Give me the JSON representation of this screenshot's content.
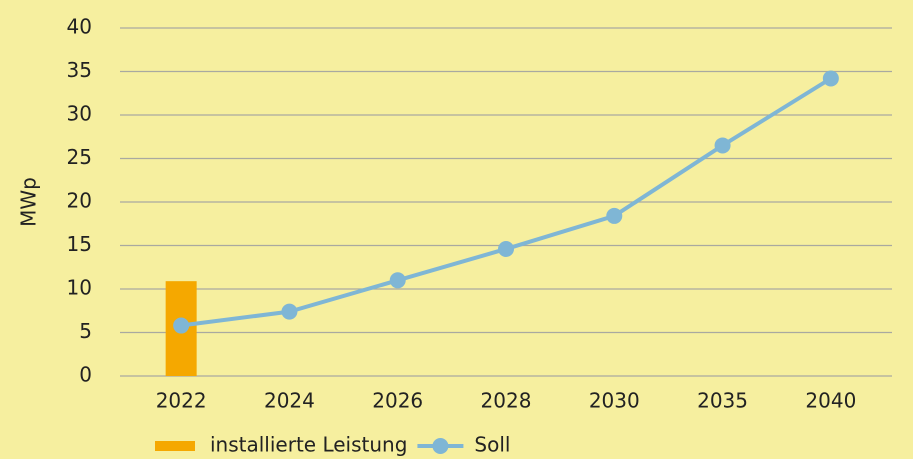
{
  "chart_data": {
    "type": "combo",
    "y_label": "MWp",
    "categories": [
      "2022",
      "2024",
      "2026",
      "2028",
      "2030",
      "2035",
      "2040"
    ],
    "series": [
      {
        "name": "installierte Leistung",
        "type": "bar",
        "color": "#f5a800",
        "values": [
          10.9,
          null,
          null,
          null,
          null,
          null,
          null
        ]
      },
      {
        "name": "Soll",
        "type": "line",
        "color": "#7fb6d5",
        "values": [
          5.8,
          7.4,
          11.0,
          14.6,
          18.4,
          26.5,
          34.2
        ]
      }
    ],
    "ylim": [
      0,
      40
    ],
    "yticks": [
      0,
      5,
      10,
      15,
      20,
      25,
      30,
      35,
      40
    ],
    "grid": true,
    "legend": "bottom"
  }
}
